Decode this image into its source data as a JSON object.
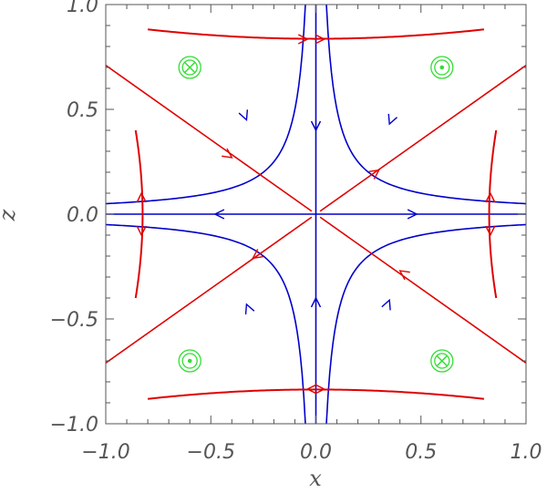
{
  "chart_data": {
    "type": "line",
    "xlabel": "x",
    "ylabel": "z",
    "xlim": [
      -1.0,
      1.0
    ],
    "ylim": [
      -1.0,
      1.0
    ],
    "x_ticks": [
      "−1.0",
      "−0.5",
      "0.0",
      "0.5",
      "1.0"
    ],
    "y_ticks": [
      "−1.0",
      "−0.5",
      "0.0",
      "0.5",
      "1.0"
    ],
    "grid": false,
    "colors": {
      "blue": "#0000cc",
      "red": "#e00000",
      "green": "#33dd33",
      "axis": "#555555"
    },
    "blue_field_lines": {
      "description_of_family": "x*z = const hyperbolas plus the axes",
      "constants": [
        0.05
      ],
      "axes": true
    },
    "red_field_lines": {
      "diagonals": true,
      "hyperbola_constants_vertical_opening": [
        0.7
      ],
      "hyperbola_constants_horizontal_opening": [
        0.7
      ]
    },
    "markers": [
      {
        "x": -0.6,
        "z": 0.7,
        "symbol": "cross"
      },
      {
        "x": 0.6,
        "z": 0.7,
        "symbol": "dot"
      },
      {
        "x": -0.6,
        "z": -0.7,
        "symbol": "dot"
      },
      {
        "x": 0.6,
        "z": -0.7,
        "symbol": "cross"
      }
    ]
  }
}
